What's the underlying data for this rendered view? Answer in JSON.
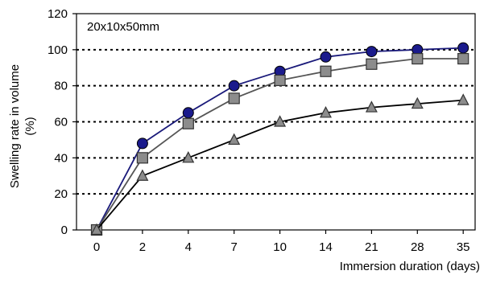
{
  "chart_data": {
    "type": "line",
    "annotation": "20x10x50mm",
    "xlabel": "Immersion duration (days)",
    "ylabel_line1": "Swelling rate in volume",
    "ylabel_line2": "(%)",
    "categories": [
      "0",
      "2",
      "4",
      "7",
      "10",
      "14",
      "21",
      "28",
      "35"
    ],
    "ylim": [
      0,
      120
    ],
    "yticks": [
      0,
      20,
      40,
      60,
      80,
      100,
      120
    ],
    "grid": "dotted horizontal lines at 20, 40, 60, 80, 100",
    "legend": "none",
    "series": [
      {
        "marker": "circle",
        "color": "#1a1a7a",
        "marker_fill": "#1a1a8c",
        "values": [
          0,
          48,
          65,
          80,
          88,
          96,
          99,
          100,
          101
        ]
      },
      {
        "marker": "square",
        "color": "#555555",
        "marker_fill": "#8c8c8c",
        "values": [
          0,
          40,
          59,
          73,
          83,
          88,
          92,
          95,
          95
        ]
      },
      {
        "marker": "triangle",
        "color": "#000000",
        "marker_fill": "#8c8c8c",
        "values": [
          0,
          30,
          40,
          50,
          60,
          65,
          68,
          70,
          72
        ]
      }
    ]
  }
}
